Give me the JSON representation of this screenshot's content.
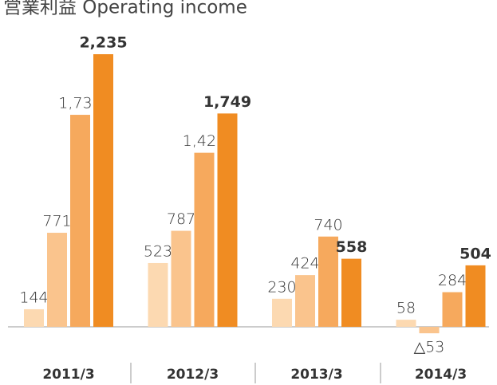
{
  "chart_data": {
    "type": "bar",
    "title": "営業利益 Operating income",
    "categories": [
      "2011/3",
      "2012/3",
      "2013/3",
      "2014/3"
    ],
    "series": [
      {
        "color": "#fcd9b1",
        "values": [
          144,
          523,
          230,
          58
        ],
        "value_labels": [
          "144",
          "523",
          "230",
          "58"
        ]
      },
      {
        "color": "#fac48d",
        "values": [
          771,
          787,
          424,
          -53
        ],
        "value_labels": [
          "771",
          "787",
          "424",
          "△53"
        ]
      },
      {
        "color": "#f6a95d",
        "values": [
          1738,
          1427,
          740,
          284
        ],
        "value_labels": [
          "1,738",
          "1,427",
          "740",
          "284"
        ]
      },
      {
        "color": "#f08c22",
        "values": [
          2235,
          1749,
          558,
          504
        ],
        "value_labels": [
          "2,235",
          "1,749",
          "558",
          "504"
        ]
      }
    ]
  }
}
